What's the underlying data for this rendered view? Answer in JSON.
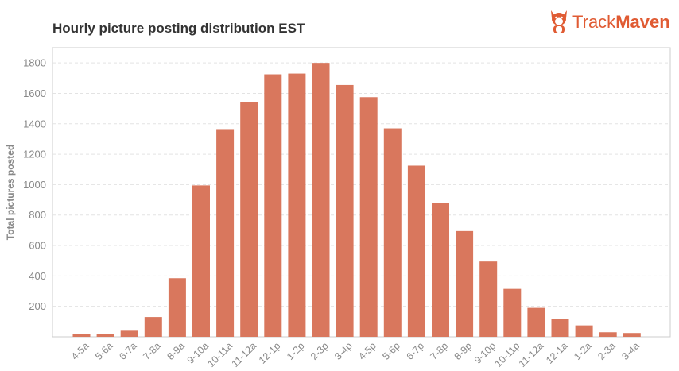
{
  "title": "Hourly picture posting distribution EST",
  "logo": {
    "light": "Track",
    "bold": "Maven",
    "name": "TrackMaven"
  },
  "colors": {
    "bar": "#d9775d",
    "brand": "#e05b33",
    "grid": "#e3e3e3",
    "axis": "#999999",
    "text": "#888888"
  },
  "chart_data": {
    "type": "bar",
    "title": "Hourly picture posting distribution EST",
    "xlabel": "",
    "ylabel": "Total pictures posted",
    "ylim": [
      0,
      1900
    ],
    "yticks": [
      200,
      400,
      600,
      800,
      1000,
      1200,
      1400,
      1600,
      1800
    ],
    "grid": true,
    "categories": [
      "4-5a",
      "5-6a",
      "6-7a",
      "7-8a",
      "8-9a",
      "9-10a",
      "10-11a",
      "11-12a",
      "12-1p",
      "1-2p",
      "2-3p",
      "3-4p",
      "4-5p",
      "5-6p",
      "6-7p",
      "7-8p",
      "8-9p",
      "9-10p",
      "10-11p",
      "11-12a",
      "12-1a",
      "1-2a",
      "2-3a",
      "3-4a"
    ],
    "values": [
      18,
      16,
      40,
      130,
      385,
      995,
      1360,
      1545,
      1725,
      1730,
      1800,
      1655,
      1575,
      1370,
      1125,
      880,
      695,
      495,
      315,
      190,
      120,
      75,
      30,
      25
    ]
  }
}
